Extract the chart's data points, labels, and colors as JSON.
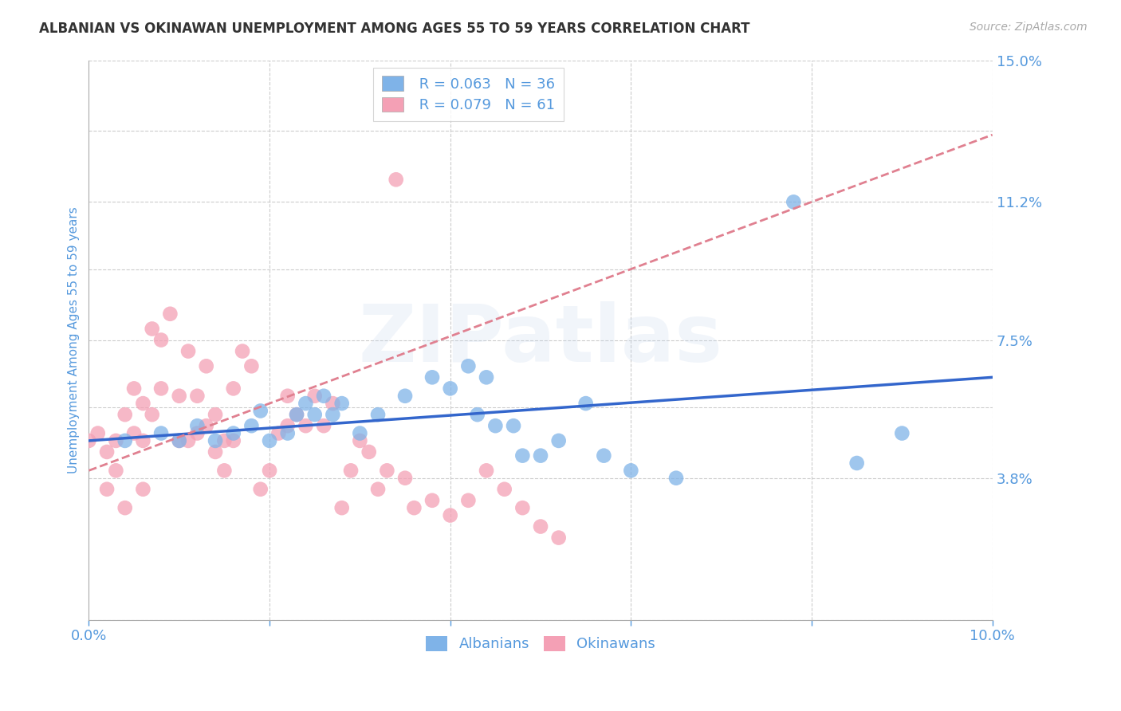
{
  "title": "ALBANIAN VS OKINAWAN UNEMPLOYMENT AMONG AGES 55 TO 59 YEARS CORRELATION CHART",
  "source": "Source: ZipAtlas.com",
  "ylabel": "Unemployment Among Ages 55 to 59 years",
  "xlim": [
    0.0,
    0.1
  ],
  "ylim": [
    0.0,
    0.15
  ],
  "ytick_labels": [
    "",
    "3.8%",
    "",
    "7.5%",
    "",
    "11.2%",
    "",
    "15.0%"
  ],
  "ytick_values": [
    0.0,
    0.038,
    0.057,
    0.075,
    0.094,
    0.112,
    0.131,
    0.15
  ],
  "xtick_labels": [
    "0.0%",
    "",
    "",
    "",
    "",
    "10.0%"
  ],
  "xtick_values": [
    0.0,
    0.02,
    0.04,
    0.06,
    0.08,
    0.1
  ],
  "albanians_R": 0.063,
  "albanians_N": 36,
  "okinawans_R": 0.079,
  "okinawans_N": 61,
  "albanian_color": "#7FB3E8",
  "okinawan_color": "#F4A0B5",
  "albanian_line_color": "#3366CC",
  "okinawan_line_color": "#E08090",
  "background_color": "#FFFFFF",
  "title_color": "#333333",
  "axis_color": "#5599DD",
  "watermark": "ZIPatlas",
  "albanians_x": [
    0.004,
    0.008,
    0.01,
    0.012,
    0.014,
    0.016,
    0.018,
    0.019,
    0.02,
    0.022,
    0.023,
    0.024,
    0.025,
    0.026,
    0.027,
    0.028,
    0.03,
    0.032,
    0.035,
    0.038,
    0.04,
    0.042,
    0.043,
    0.044,
    0.045,
    0.047,
    0.048,
    0.05,
    0.052,
    0.055,
    0.057,
    0.06,
    0.065,
    0.078,
    0.085,
    0.09
  ],
  "albanians_y": [
    0.048,
    0.05,
    0.048,
    0.052,
    0.048,
    0.05,
    0.052,
    0.056,
    0.048,
    0.05,
    0.055,
    0.058,
    0.055,
    0.06,
    0.055,
    0.058,
    0.05,
    0.055,
    0.06,
    0.065,
    0.062,
    0.068,
    0.055,
    0.065,
    0.052,
    0.052,
    0.044,
    0.044,
    0.048,
    0.058,
    0.044,
    0.04,
    0.038,
    0.112,
    0.042,
    0.05
  ],
  "okinawans_x": [
    0.0,
    0.001,
    0.002,
    0.002,
    0.003,
    0.003,
    0.004,
    0.004,
    0.005,
    0.005,
    0.006,
    0.006,
    0.006,
    0.007,
    0.007,
    0.008,
    0.008,
    0.009,
    0.01,
    0.01,
    0.011,
    0.011,
    0.012,
    0.012,
    0.013,
    0.013,
    0.014,
    0.014,
    0.015,
    0.015,
    0.016,
    0.016,
    0.017,
    0.018,
    0.019,
    0.02,
    0.021,
    0.022,
    0.022,
    0.023,
    0.024,
    0.025,
    0.026,
    0.027,
    0.028,
    0.029,
    0.03,
    0.031,
    0.032,
    0.033,
    0.034,
    0.035,
    0.036,
    0.038,
    0.04,
    0.042,
    0.044,
    0.046,
    0.048,
    0.05,
    0.052
  ],
  "okinawans_y": [
    0.048,
    0.05,
    0.045,
    0.035,
    0.048,
    0.04,
    0.03,
    0.055,
    0.05,
    0.062,
    0.058,
    0.048,
    0.035,
    0.055,
    0.078,
    0.075,
    0.062,
    0.082,
    0.048,
    0.06,
    0.048,
    0.072,
    0.05,
    0.06,
    0.052,
    0.068,
    0.045,
    0.055,
    0.048,
    0.04,
    0.048,
    0.062,
    0.072,
    0.068,
    0.035,
    0.04,
    0.05,
    0.052,
    0.06,
    0.055,
    0.052,
    0.06,
    0.052,
    0.058,
    0.03,
    0.04,
    0.048,
    0.045,
    0.035,
    0.04,
    0.118,
    0.038,
    0.03,
    0.032,
    0.028,
    0.032,
    0.04,
    0.035,
    0.03,
    0.025,
    0.022
  ],
  "alb_trend_x0": 0.0,
  "alb_trend_y0": 0.048,
  "alb_trend_x1": 0.1,
  "alb_trend_y1": 0.065,
  "oki_trend_x0": 0.0,
  "oki_trend_y0": 0.04,
  "oki_trend_x1": 0.1,
  "oki_trend_y1": 0.13
}
